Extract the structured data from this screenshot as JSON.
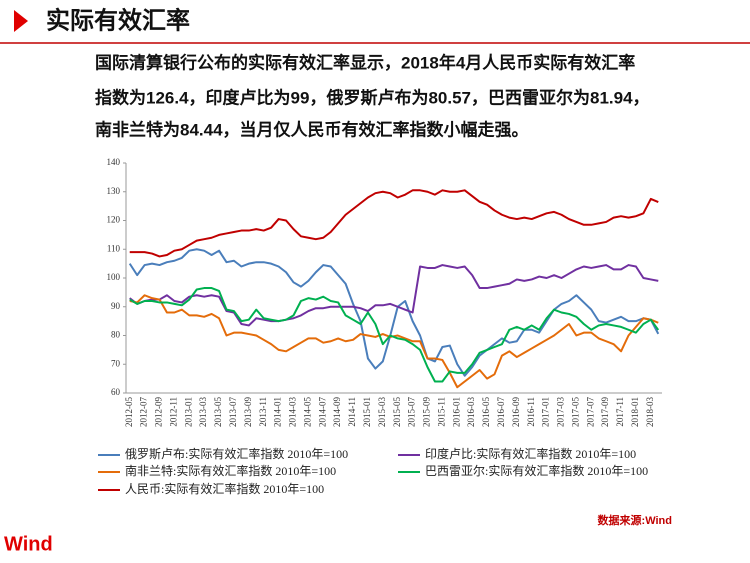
{
  "header": {
    "title": "实际有效汇率"
  },
  "summary": [
    "国际清算银行公布的实际有效汇率显示，2018年4月人民币实际有效汇率",
    "指数为126.4，印度卢比为99，俄罗斯卢布为80.57，巴西雷亚尔为81.94，",
    "南非兰特为84.44，当月仅人民币有效汇率指数小幅走强。"
  ],
  "chart_data": {
    "type": "line",
    "categories": [
      "2012-05",
      null,
      "2012-07",
      null,
      "2012-09",
      null,
      "2012-11",
      null,
      "2013-01",
      null,
      "2013-03",
      null,
      "2013-05",
      null,
      "2013-07",
      null,
      "2013-09",
      null,
      "2013-11",
      null,
      "2014-01",
      null,
      "2014-03",
      null,
      "2014-05",
      null,
      "2014-07",
      null,
      "2014-09",
      null,
      "2014-11",
      null,
      "2015-01",
      null,
      "2015-03",
      null,
      "2015-05",
      null,
      "2015-07",
      null,
      "2015-09",
      null,
      "2015-11",
      null,
      "2016-01",
      null,
      "2016-03",
      null,
      "2016-05",
      null,
      "2016-07",
      null,
      "2016-09",
      null,
      "2016-11",
      null,
      "2017-01",
      null,
      "2017-03",
      null,
      "2017-05",
      null,
      "2017-07",
      null,
      "2017-09",
      null,
      "2017-11",
      null,
      "2018-01",
      null,
      "2018-03",
      null
    ],
    "ylim": [
      60,
      140
    ],
    "yticks": [
      60,
      70,
      80,
      90,
      100,
      110,
      120,
      130,
      140
    ],
    "series": [
      {
        "name": "俄罗斯卢布:实际有效汇率指数 2010年=100",
        "color": "#4a7ebb",
        "values": [
          105,
          101,
          104.5,
          105,
          104.5,
          105.5,
          106,
          107,
          109.5,
          110,
          109.5,
          108,
          109.5,
          105.5,
          106,
          104,
          105,
          105.5,
          105.5,
          105,
          104,
          102,
          98.5,
          97,
          99,
          102,
          104.5,
          104,
          101,
          98,
          91,
          85,
          72,
          68.5,
          71,
          80,
          90,
          92,
          85,
          80,
          72,
          71,
          76,
          76.5,
          70,
          66,
          69,
          73,
          75,
          77,
          79,
          77.5,
          78,
          82,
          82,
          81,
          85,
          89,
          91,
          92,
          94,
          91.5,
          89,
          85,
          84.5,
          85.5,
          86.5,
          85,
          85,
          86,
          85.5,
          80.57
        ]
      },
      {
        "name": "印度卢比:实际有效汇率指数 2010年=100",
        "color": "#7030a0",
        "values": [
          93,
          91,
          92,
          92.5,
          92.5,
          94,
          92,
          91.5,
          93.5,
          94,
          93.5,
          94,
          93.5,
          88.5,
          88,
          84,
          83.5,
          86,
          85.5,
          85,
          85,
          85.5,
          86,
          87,
          88.5,
          89.5,
          89.5,
          90,
          90,
          90,
          90,
          89.5,
          88.5,
          90.5,
          90.5,
          91,
          90,
          89,
          88,
          104,
          103.5,
          103.5,
          104.5,
          104,
          103.5,
          104,
          101,
          96.5,
          96.5,
          97,
          97.5,
          98,
          99.5,
          99,
          99.5,
          100.5,
          100,
          101,
          100,
          101.5,
          103,
          104,
          103.5,
          104,
          104.5,
          103,
          103,
          104.5,
          104,
          100,
          99.5,
          99
        ]
      },
      {
        "name": "南非兰特:实际有效汇率指数 2010年=100",
        "color": "#e46c0a",
        "values": [
          92,
          91.5,
          94,
          93,
          92.5,
          88,
          88,
          89,
          87,
          87,
          86.5,
          87.5,
          86,
          80,
          81,
          81,
          80.5,
          80,
          78.5,
          77,
          75,
          74.5,
          76,
          77.5,
          79,
          79,
          77.5,
          78,
          79,
          78,
          78.5,
          80.5,
          80,
          79.5,
          80.5,
          79.5,
          80,
          79,
          78,
          78,
          72,
          72,
          71.5,
          67,
          62,
          64,
          66,
          68,
          65,
          66.5,
          73,
          74.5,
          72.5,
          74,
          75.5,
          77,
          78.5,
          80,
          82,
          84,
          80,
          81,
          81,
          79,
          78,
          77,
          74.5,
          80,
          83,
          86,
          85.5,
          84.44
        ]
      },
      {
        "name": "巴西雷亚尔:实际有效汇率指数 2010年=100",
        "color": "#00b050",
        "values": [
          92.5,
          91,
          92,
          92,
          91.5,
          91.5,
          91,
          90.5,
          92.5,
          96,
          96.5,
          96.5,
          95.5,
          89,
          88.5,
          85,
          85.5,
          89,
          86,
          85.5,
          85,
          85.5,
          87,
          92,
          93,
          92.5,
          93.5,
          92,
          91.5,
          87,
          85.5,
          84,
          88,
          84,
          77,
          80,
          79,
          78.5,
          77,
          75,
          69,
          64,
          64,
          67.5,
          67,
          67,
          70,
          74,
          75,
          76,
          77,
          82,
          83,
          82,
          83.5,
          82,
          86,
          89,
          88,
          87.5,
          86.5,
          84,
          82,
          83.5,
          84,
          83.5,
          83,
          82,
          81,
          84,
          85.5,
          81.94
        ]
      },
      {
        "name": "人民币:实际有效汇率指数 2010年=100",
        "color": "#c00000",
        "values": [
          109,
          109,
          109,
          108.5,
          107.5,
          108,
          109.5,
          110,
          111.5,
          113,
          113.5,
          114,
          115,
          115.5,
          116,
          116.5,
          116.5,
          117,
          116.5,
          117.5,
          120.5,
          120,
          117,
          114.5,
          114,
          113.5,
          114,
          116,
          119,
          122,
          124,
          126,
          128,
          129.5,
          130,
          129.5,
          128,
          129,
          130.5,
          130.5,
          130,
          129,
          130.5,
          130,
          130,
          130.5,
          128.5,
          126.5,
          125.5,
          123.5,
          122,
          121,
          120.5,
          121,
          120.5,
          121.5,
          122.5,
          123,
          122,
          120.5,
          119.5,
          118.5,
          118.5,
          119,
          119.5,
          121,
          121.5,
          121,
          121.5,
          122.5,
          127.5,
          126.4
        ]
      }
    ],
    "legend_columns": 2
  },
  "source": "数据来源:Wind",
  "logo": "Wind"
}
